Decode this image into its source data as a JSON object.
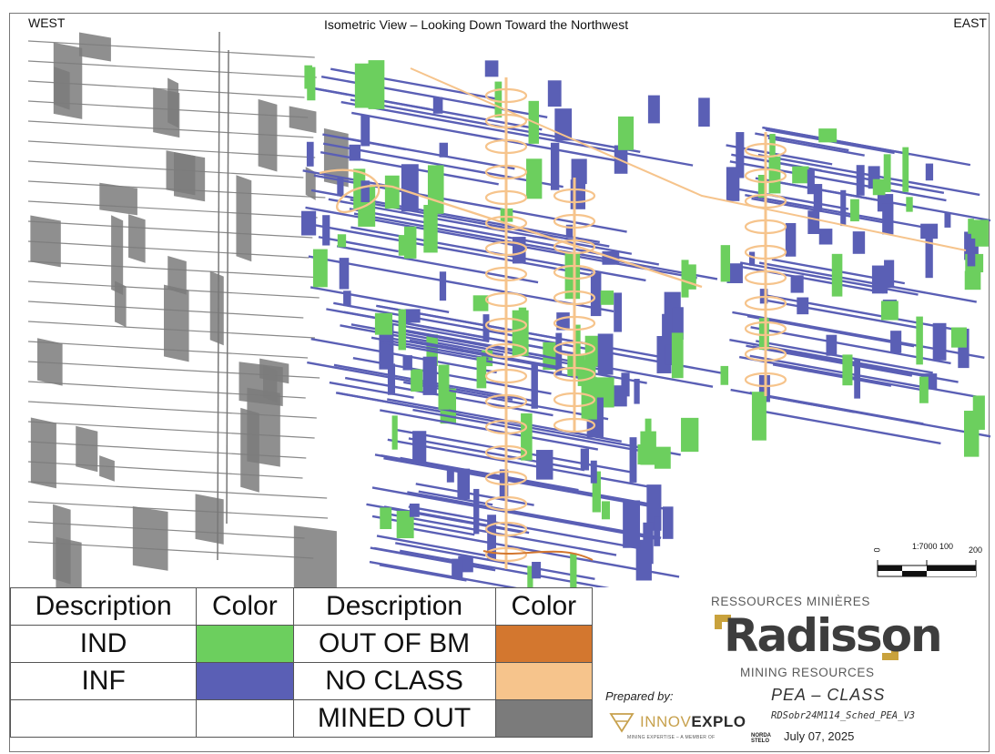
{
  "view": {
    "west_label": "WEST",
    "east_label": "EAST",
    "title": "Isometric View – Looking Down Toward the Northwest",
    "scale_bar": {
      "tick_0": "0",
      "tick_mid": "1:7000 100",
      "tick_end": "200"
    }
  },
  "legend": {
    "headers": [
      "Description",
      "Color",
      "Description",
      "Color"
    ],
    "rows": [
      {
        "left_desc": "IND",
        "left_color": "#6ccf5e",
        "right_desc": "OUT OF BM",
        "right_color": "#d3772f"
      },
      {
        "left_desc": "INF",
        "left_color": "#5a5fb5",
        "right_desc": "NO CLASS",
        "right_color": "#f6c48c"
      },
      {
        "left_desc": "",
        "left_color": "#ffffff",
        "right_desc": "MINED OUT",
        "right_color": "#7b7b7b"
      }
    ]
  },
  "colors": {
    "ind_green": "#6ccf5e",
    "inf_blue": "#5a5fb5",
    "mined_out_gray": "#7b7b7b",
    "no_class_tan": "#f6c48c",
    "out_of_bm_orange": "#d3772f",
    "radisson_gold": "#c9a23c",
    "innovexplo_gold": "#c7a14d"
  },
  "title_block": {
    "brand_top": "RESSOURCES MINIÈRES",
    "brand_logo": "Radisson",
    "brand_bottom": "MINING RESOURCES",
    "prepared_by_label": "Prepared by:",
    "innovexplo_light": "INNOV",
    "innovexplo_bold": "EXPLO",
    "innovexplo_tagline": "MINING EXPERTISE – A MEMBER OF",
    "norda_logo": "NORDA STELO",
    "project_title": "PEA  –  CLASS",
    "file_name": "RDSobr24M114_Sched_PEA_V3",
    "date": "July 07, 2025"
  }
}
